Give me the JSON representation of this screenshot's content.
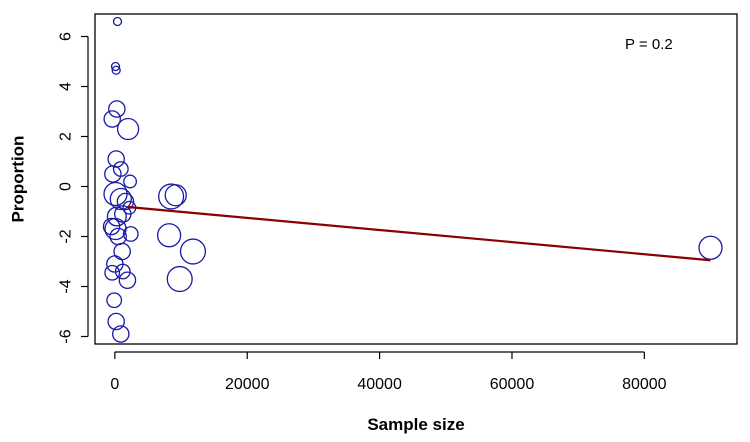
{
  "chart_data": {
    "type": "scatter",
    "title": "",
    "xlabel": "Sample size",
    "ylabel": "Proportion",
    "xlim": [
      -3000,
      94000
    ],
    "ylim": [
      -6.3,
      6.9
    ],
    "x_ticks": [
      0,
      20000,
      40000,
      60000,
      80000
    ],
    "x_tick_labels": [
      "0",
      "20000",
      "40000",
      "60000",
      "80000"
    ],
    "y_ticks": [
      -6,
      -4,
      -2,
      0,
      2,
      4,
      6
    ],
    "y_tick_labels": [
      "-6",
      "-4",
      "-2",
      "0",
      "2",
      "4",
      "6"
    ],
    "grid": false,
    "annotation": "P = 0.2",
    "colors": {
      "points": "#1a1aa6",
      "fit_line": "#8b0000",
      "frame": "#000000"
    },
    "series": [
      {
        "points": [
          {
            "x": 400,
            "y": 6.6,
            "size": 300
          },
          {
            "x": 100,
            "y": 4.8,
            "size": 300
          },
          {
            "x": 200,
            "y": 4.65,
            "size": 300
          },
          {
            "x": 300,
            "y": 3.1,
            "size": 1500
          },
          {
            "x": 2000,
            "y": 2.3,
            "size": 2500
          },
          {
            "x": -400,
            "y": 2.7,
            "size": 1500
          },
          {
            "x": 200,
            "y": 1.1,
            "size": 1500
          },
          {
            "x": 900,
            "y": 0.7,
            "size": 1200
          },
          {
            "x": 2300,
            "y": 0.2,
            "size": 900
          },
          {
            "x": -300,
            "y": 0.5,
            "size": 1500
          },
          {
            "x": 100,
            "y": -0.3,
            "size": 3000
          },
          {
            "x": 900,
            "y": -0.5,
            "size": 2500
          },
          {
            "x": 1600,
            "y": -0.6,
            "size": 1500
          },
          {
            "x": 2200,
            "y": -0.85,
            "size": 900
          },
          {
            "x": 300,
            "y": -1.2,
            "size": 2000
          },
          {
            "x": 1200,
            "y": -1.1,
            "size": 1500
          },
          {
            "x": -500,
            "y": -1.6,
            "size": 1500
          },
          {
            "x": 100,
            "y": -1.7,
            "size": 2500
          },
          {
            "x": 2400,
            "y": -1.9,
            "size": 1200
          },
          {
            "x": 500,
            "y": -2.0,
            "size": 1500
          },
          {
            "x": 1100,
            "y": -2.6,
            "size": 1500
          },
          {
            "x": 0,
            "y": -3.1,
            "size": 1500
          },
          {
            "x": 1200,
            "y": -3.4,
            "size": 1200
          },
          {
            "x": -400,
            "y": -3.45,
            "size": 1200
          },
          {
            "x": 1900,
            "y": -3.75,
            "size": 1500
          },
          {
            "x": -100,
            "y": -4.55,
            "size": 1200
          },
          {
            "x": 200,
            "y": -5.4,
            "size": 1500
          },
          {
            "x": 900,
            "y": -5.9,
            "size": 1500
          },
          {
            "x": 8500,
            "y": -0.4,
            "size": 3500
          },
          {
            "x": 9200,
            "y": -0.35,
            "size": 2500
          },
          {
            "x": 8200,
            "y": -1.95,
            "size": 3000
          },
          {
            "x": 11800,
            "y": -2.6,
            "size": 3500
          },
          {
            "x": 9800,
            "y": -3.7,
            "size": 3500
          },
          {
            "x": 90000,
            "y": -2.45,
            "size": 3000
          }
        ]
      }
    ],
    "fit_line": {
      "x": [
        2000,
        90000
      ],
      "y": [
        -0.82,
        -2.95
      ]
    }
  }
}
